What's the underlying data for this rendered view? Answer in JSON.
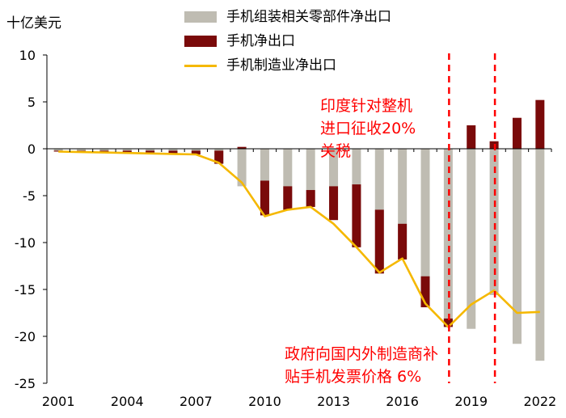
{
  "unit_label": "十亿美元",
  "colors": {
    "components": "#bfbcb2",
    "phones": "#7a0a0a",
    "manufacturing": "#f5b800",
    "event_line": "#ff0000",
    "annotation": "#ff0000"
  },
  "annotations": {
    "import_tariff": [
      "印度针对整机",
      "进口征收20%",
      "关税"
    ],
    "subsidy": [
      "政府向国内外制造商补",
      "贴手机发票价格  6%"
    ]
  },
  "chart_data": {
    "type": "bar",
    "title": "",
    "xlabel": "",
    "ylabel": "十亿美元",
    "ylim": [
      -25,
      10
    ],
    "yticks": [
      10,
      5,
      0,
      -5,
      -10,
      -15,
      -20,
      -25
    ],
    "grid": false,
    "legend_position": "top",
    "categories": [
      "2001",
      "2002",
      "2003",
      "2004",
      "2005",
      "2006",
      "2007",
      "2008",
      "2009",
      "2010",
      "2011",
      "2012",
      "2013",
      "2014",
      "2015",
      "2016",
      "2017",
      "2018",
      "2019",
      "2020",
      "2021",
      "2022"
    ],
    "xtick_labels": [
      "2001",
      "2004",
      "2007",
      "2010",
      "2013",
      "2016",
      "2019",
      "2022"
    ],
    "series": [
      {
        "name": "手机组装相关零部件净出口",
        "type": "bar",
        "values": [
          -0.3,
          -0.3,
          -0.3,
          -0.4,
          -0.4,
          -0.5,
          -0.6,
          -1.6,
          -4.0,
          -7.1,
          -6.5,
          -6.2,
          -7.6,
          -10.5,
          -13.3,
          -11.8,
          -16.9,
          -19.0,
          -19.2,
          -15.6,
          -20.8,
          -22.6
        ]
      },
      {
        "name": "手机净出口",
        "type": "bar",
        "values": [
          -0.2,
          -0.2,
          -0.2,
          -0.2,
          -0.2,
          -0.2,
          -0.2,
          -0.2,
          0.2,
          -3.4,
          -4.0,
          -4.4,
          -4.0,
          -3.8,
          -6.5,
          -8.0,
          -13.6,
          -18.1,
          2.5,
          0.8,
          3.3,
          5.2
        ]
      },
      {
        "name": "手机制造业净出口",
        "type": "line",
        "values": [
          -0.3,
          -0.35,
          -0.4,
          -0.45,
          -0.5,
          -0.55,
          -0.6,
          -1.5,
          -3.6,
          -7.2,
          -6.5,
          -6.2,
          -8.0,
          -10.5,
          -13.2,
          -11.7,
          -16.5,
          -19.0,
          -16.6,
          -15.1,
          -17.5,
          -17.4
        ]
      }
    ],
    "event_markers": [
      {
        "x": "2018",
        "label": "印度针对整机进口征收20%关税"
      },
      {
        "x": "2020",
        "label": "政府向国内外制造商补贴手机发票价格6%"
      }
    ]
  }
}
